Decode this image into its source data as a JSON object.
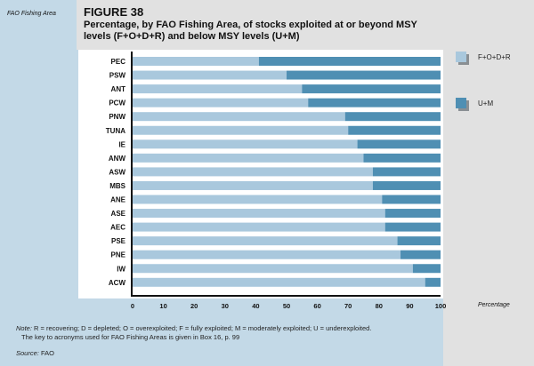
{
  "figure_label": "FIGURE 38",
  "note_prefix": "Note:",
  "note_text": "R = recovering; D = depleted; O = overexploited; F = fully exploited; M = moderately exploited; U = underexploited.",
  "note_text2": "The key to acronyms used for FAO Fishing Areas is given in Box 16, p. 99",
  "source_prefix": "Source:",
  "source_text": "FAO",
  "colors": {
    "light": "#a9c8dd",
    "dark": "#4f8fb3"
  },
  "chart_data": {
    "type": "bar",
    "stacked": true,
    "orientation": "horizontal",
    "title": "Percentage, by FAO Fishing Area, of stocks exploited at or beyond MSY levels (F+O+D+R) and below MSY levels (U+M)",
    "xlabel": "Percentage",
    "ylabel": "FAO Fishing Area",
    "xlim": [
      0,
      100
    ],
    "xticks": [
      "0",
      "10",
      "20",
      "30",
      "40",
      "50",
      "60",
      "70",
      "80",
      "90",
      "100"
    ],
    "categories": [
      "PEC",
      "PSW",
      "ANT",
      "PCW",
      "PNW",
      "TUNA",
      "IE",
      "ANW",
      "ASW",
      "MBS",
      "ANE",
      "ASE",
      "AEC",
      "PSE",
      "PNE",
      "IW",
      "ACW"
    ],
    "series": [
      {
        "name": "F+O+D+R",
        "values": [
          41,
          50,
          55,
          57,
          69,
          70,
          73,
          75,
          78,
          78,
          81,
          82,
          82,
          86,
          87,
          91,
          95
        ]
      },
      {
        "name": "U+M",
        "values": [
          59,
          50,
          45,
          43,
          31,
          30,
          27,
          25,
          22,
          22,
          19,
          18,
          18,
          14,
          13,
          9,
          5
        ]
      }
    ],
    "legend": "right"
  }
}
